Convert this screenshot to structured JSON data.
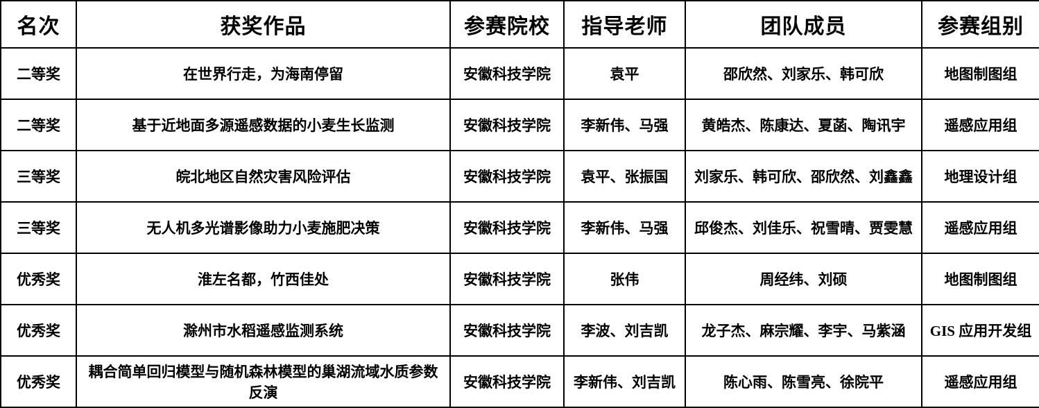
{
  "table": {
    "columns": [
      "名次",
      "获奖作品",
      "参赛院校",
      "指导老师",
      "团队成员",
      "参赛组别"
    ],
    "rows": [
      {
        "cells": [
          "二等奖",
          "在世界行走，为海南停留",
          "安徽科技学院",
          "袁平",
          "邵欣然、刘家乐、韩可欣",
          "地图制图组"
        ]
      },
      {
        "cells": [
          "二等奖",
          "基于近地面多源遥感数据的小麦生长监测",
          "安徽科技学院",
          "李新伟、马强",
          "黄皓杰、陈康达、夏菡、陶讯宇",
          "遥感应用组"
        ]
      },
      {
        "cells": [
          "三等奖",
          "皖北地区自然灾害风险评估",
          "安徽科技学院",
          "袁平、张振国",
          "刘家乐、韩可欣、邵欣然、刘鑫鑫",
          "地理设计组"
        ]
      },
      {
        "cells": [
          "三等奖",
          "无人机多光谱影像助力小麦施肥决策",
          "安徽科技学院",
          "李新伟、马强",
          "邱俊杰、刘佳乐、祝雪晴、贾雯慧",
          "遥感应用组"
        ]
      },
      {
        "cells": [
          "优秀奖",
          "淮左名都，竹西佳处",
          "安徽科技学院",
          "张伟",
          "周经纬、刘硕",
          "地图制图组"
        ]
      },
      {
        "cells": [
          "优秀奖",
          "滁州市水稻遥感监测系统",
          "安徽科技学院",
          "李波、刘吉凯",
          "龙子杰、麻宗耀、李宇、马紫涵",
          "GIS 应用开发组"
        ]
      },
      {
        "cells": [
          "优秀奖",
          "耦合简单回归模型与随机森林模型的巢湖流域水质参数反演",
          "安徽科技学院",
          "李新伟、刘吉凯",
          "陈心雨、陈雪亮、徐院平",
          "遥感应用组"
        ]
      }
    ]
  },
  "colors": {
    "border": "#000000",
    "background": "#ffffff",
    "text": "#000000"
  }
}
